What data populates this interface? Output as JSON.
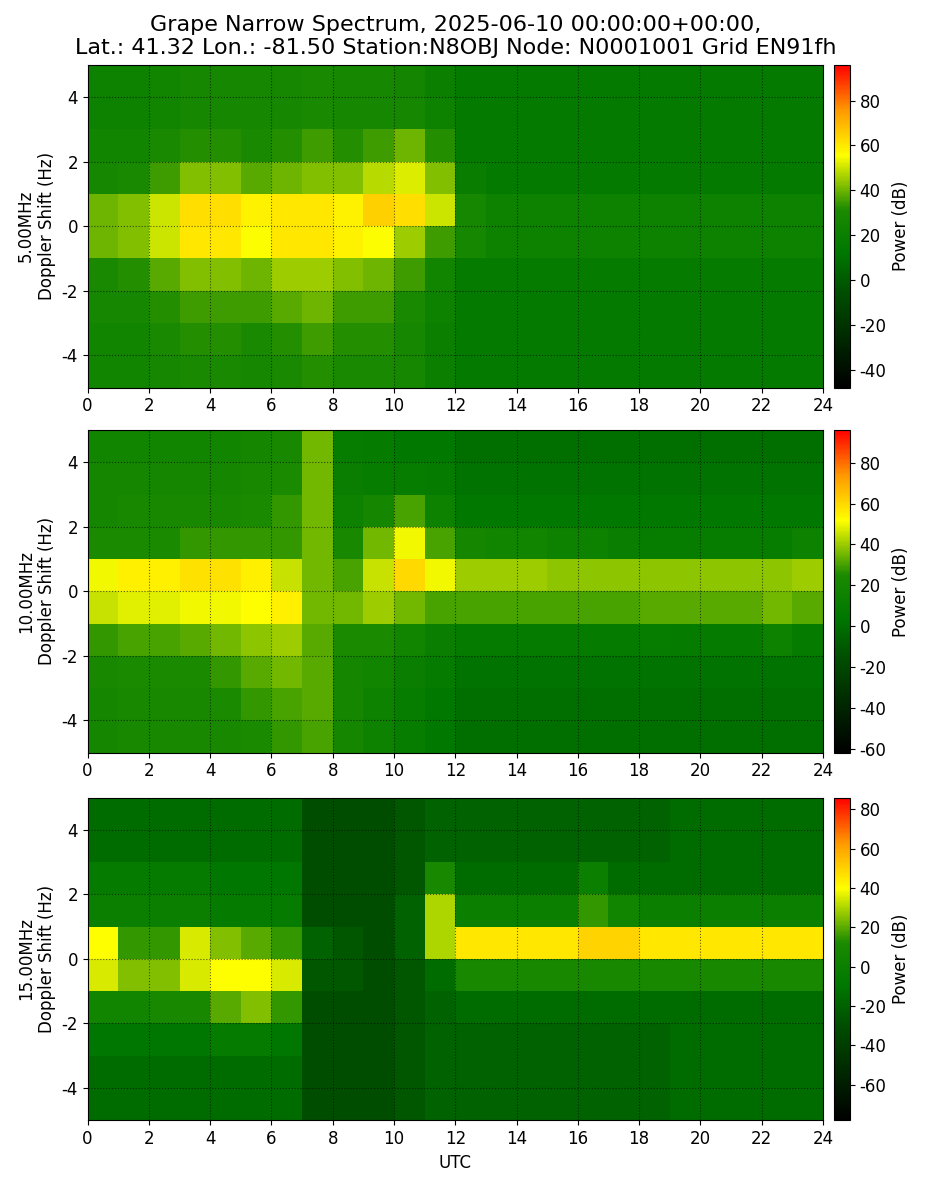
{
  "chart_data": [
    {
      "type": "heatmap",
      "title": "Grape Narrow Spectrum, 2025-06-10 00:00:00+00:00,\nLat.: 41.32 Lon.: -81.50 Station:N8OBJ Node: N0001001 Grid EN91fh",
      "ylabel": "5.00MHz\nDoppler Shift (Hz)",
      "xlim": [
        0,
        24
      ],
      "xticks": [
        0,
        2,
        4,
        6,
        8,
        10,
        12,
        14,
        16,
        18,
        20,
        22,
        24
      ],
      "ylim": [
        -5,
        5
      ],
      "yticks": [
        -4,
        -2,
        0,
        2,
        4
      ],
      "grid": true,
      "x_edges": [
        0,
        1,
        2,
        3,
        4,
        5,
        6,
        7,
        8,
        9,
        10,
        11,
        12,
        13,
        14,
        15,
        16,
        17,
        18,
        19,
        20,
        21,
        22,
        23,
        24
      ],
      "y_edges": [
        -5,
        -4,
        -3,
        -2,
        -1,
        0,
        1,
        2,
        3,
        4,
        5
      ],
      "cells": [
        [
          25,
          25,
          28,
          30,
          30,
          28,
          30,
          32,
          30,
          30,
          28,
          20,
          15,
          15,
          15,
          15,
          15,
          15,
          15,
          15,
          15,
          15,
          15,
          15
        ],
        [
          25,
          25,
          30,
          32,
          32,
          30,
          32,
          35,
          32,
          32,
          28,
          20,
          15,
          15,
          15,
          15,
          15,
          15,
          15,
          15,
          15,
          15,
          15,
          15
        ],
        [
          28,
          28,
          32,
          35,
          35,
          35,
          38,
          40,
          35,
          35,
          30,
          22,
          15,
          15,
          15,
          15,
          15,
          15,
          15,
          15,
          15,
          15,
          15,
          15
        ],
        [
          30,
          32,
          38,
          42,
          42,
          40,
          45,
          45,
          42,
          40,
          35,
          25,
          16,
          16,
          16,
          16,
          16,
          16,
          16,
          16,
          16,
          16,
          16,
          16
        ],
        [
          40,
          42,
          50,
          60,
          60,
          55,
          60,
          60,
          58,
          55,
          45,
          35,
          28,
          22,
          22,
          22,
          22,
          22,
          22,
          22,
          22,
          22,
          22,
          22
        ],
        [
          40,
          42,
          50,
          62,
          62,
          58,
          60,
          60,
          58,
          65,
          62,
          50,
          28,
          22,
          22,
          22,
          22,
          22,
          22,
          22,
          22,
          22,
          22,
          22
        ],
        [
          28,
          30,
          35,
          42,
          42,
          38,
          40,
          42,
          42,
          48,
          52,
          42,
          18,
          15,
          15,
          15,
          15,
          15,
          15,
          15,
          15,
          15,
          15,
          15
        ],
        [
          25,
          25,
          30,
          32,
          32,
          30,
          32,
          35,
          32,
          35,
          40,
          32,
          15,
          15,
          15,
          15,
          15,
          15,
          15,
          15,
          15,
          15,
          15,
          15
        ],
        [
          22,
          22,
          25,
          28,
          28,
          28,
          28,
          30,
          28,
          28,
          28,
          22,
          15,
          15,
          15,
          15,
          15,
          15,
          15,
          15,
          15,
          15,
          15,
          15
        ],
        [
          22,
          22,
          25,
          28,
          28,
          28,
          28,
          30,
          28,
          28,
          26,
          20,
          15,
          15,
          15,
          15,
          15,
          15,
          15,
          15,
          15,
          15,
          15,
          15
        ]
      ],
      "colorbar": {
        "label": "Power (dB)",
        "range": [
          -48,
          96
        ],
        "ticks": [
          -40,
          -20,
          0,
          20,
          40,
          60,
          80
        ]
      }
    },
    {
      "type": "heatmap",
      "ylabel": "10.00MHz\nDoppler Shift (Hz)",
      "xlim": [
        0,
        24
      ],
      "xticks": [
        0,
        2,
        4,
        6,
        8,
        10,
        12,
        14,
        16,
        18,
        20,
        22,
        24
      ],
      "ylim": [
        -5,
        5
      ],
      "yticks": [
        -4,
        -2,
        0,
        2,
        4
      ],
      "grid": true,
      "x_edges": [
        0,
        1,
        2,
        3,
        4,
        5,
        6,
        7,
        8,
        9,
        10,
        11,
        12,
        13,
        14,
        15,
        16,
        17,
        18,
        19,
        20,
        21,
        22,
        23,
        24
      ],
      "y_edges": [
        -5,
        -4,
        -3,
        -2,
        -1,
        0,
        1,
        2,
        3,
        4,
        5
      ],
      "cells": [
        [
          20,
          22,
          22,
          22,
          22,
          25,
          28,
          30,
          20,
          15,
          10,
          5,
          0,
          0,
          0,
          0,
          0,
          0,
          0,
          0,
          0,
          0,
          0,
          0
        ],
        [
          20,
          22,
          22,
          22,
          25,
          28,
          30,
          32,
          20,
          15,
          10,
          5,
          0,
          0,
          0,
          0,
          0,
          0,
          0,
          0,
          0,
          0,
          0,
          0
        ],
        [
          22,
          25,
          25,
          25,
          28,
          32,
          35,
          32,
          20,
          18,
          12,
          8,
          2,
          2,
          2,
          2,
          2,
          2,
          2,
          2,
          2,
          2,
          2,
          2
        ],
        [
          28,
          30,
          30,
          32,
          35,
          38,
          40,
          32,
          25,
          25,
          18,
          12,
          8,
          8,
          8,
          8,
          8,
          8,
          10,
          8,
          8,
          8,
          15,
          8
        ],
        [
          45,
          48,
          48,
          50,
          50,
          52,
          55,
          35,
          35,
          40,
          35,
          30,
          30,
          30,
          30,
          30,
          30,
          30,
          32,
          32,
          32,
          32,
          35,
          32
        ],
        [
          50,
          55,
          55,
          58,
          58,
          55,
          45,
          35,
          30,
          45,
          60,
          50,
          40,
          40,
          40,
          38,
          38,
          38,
          38,
          38,
          38,
          38,
          38,
          40
        ],
        [
          25,
          25,
          25,
          28,
          28,
          28,
          28,
          35,
          22,
          35,
          50,
          30,
          20,
          18,
          18,
          15,
          15,
          12,
          10,
          10,
          10,
          10,
          10,
          15
        ],
        [
          20,
          22,
          22,
          22,
          22,
          25,
          28,
          35,
          15,
          20,
          30,
          15,
          5,
          5,
          5,
          5,
          5,
          5,
          5,
          5,
          5,
          5,
          5,
          5
        ],
        [
          20,
          20,
          20,
          20,
          20,
          22,
          25,
          35,
          12,
          10,
          10,
          8,
          2,
          2,
          2,
          2,
          2,
          2,
          2,
          2,
          2,
          2,
          2,
          2
        ],
        [
          18,
          18,
          18,
          18,
          18,
          20,
          22,
          35,
          10,
          8,
          5,
          5,
          0,
          0,
          0,
          0,
          0,
          0,
          0,
          0,
          0,
          0,
          0,
          0
        ]
      ],
      "colorbar": {
        "label": "Power (dB)",
        "range": [
          -62,
          96
        ],
        "ticks": [
          -60,
          -40,
          -20,
          0,
          20,
          40,
          60,
          80
        ]
      }
    },
    {
      "type": "heatmap",
      "ylabel": "15.00MHz\nDoppler Shift (Hz)",
      "xlabel": "UTC",
      "xlim": [
        0,
        24
      ],
      "xticks": [
        0,
        2,
        4,
        6,
        8,
        10,
        12,
        14,
        16,
        18,
        20,
        22,
        24
      ],
      "ylim": [
        -5,
        5
      ],
      "yticks": [
        -4,
        -2,
        0,
        2,
        4
      ],
      "grid": true,
      "x_edges": [
        0,
        1,
        2,
        3,
        4,
        5,
        6,
        7,
        8,
        9,
        10,
        11,
        12,
        13,
        14,
        15,
        16,
        17,
        18,
        19,
        20,
        21,
        22,
        23,
        24
      ],
      "y_edges": [
        -5,
        -4,
        -3,
        -2,
        -1,
        0,
        1,
        2,
        3,
        4,
        5
      ],
      "cells": [
        [
          -15,
          -15,
          -15,
          -15,
          -15,
          -15,
          -15,
          -30,
          -30,
          -30,
          -25,
          -20,
          -20,
          -20,
          -20,
          -20,
          -20,
          -20,
          -20,
          -15,
          -15,
          -15,
          -15,
          -15
        ],
        [
          -15,
          -15,
          -15,
          -15,
          -15,
          -15,
          -15,
          -30,
          -30,
          -30,
          -25,
          -20,
          -20,
          -20,
          -20,
          -20,
          -20,
          -20,
          -20,
          -15,
          -15,
          -15,
          -15,
          -15
        ],
        [
          -10,
          -10,
          -10,
          -10,
          -5,
          -5,
          -10,
          -30,
          -30,
          -30,
          -25,
          -20,
          -20,
          -20,
          -20,
          -20,
          -20,
          -20,
          -20,
          -15,
          -15,
          -15,
          -15,
          -15
        ],
        [
          5,
          5,
          10,
          10,
          20,
          25,
          15,
          -30,
          -30,
          -30,
          -25,
          -20,
          -15,
          -15,
          -15,
          -15,
          -15,
          -15,
          -15,
          -15,
          -15,
          -15,
          -15,
          -15
        ],
        [
          35,
          25,
          25,
          35,
          40,
          40,
          35,
          -25,
          -25,
          -30,
          -25,
          -15,
          10,
          10,
          10,
          10,
          10,
          10,
          10,
          10,
          10,
          10,
          10,
          10
        ],
        [
          40,
          15,
          15,
          35,
          25,
          20,
          15,
          -20,
          -25,
          -30,
          -20,
          30,
          45,
          45,
          45,
          45,
          50,
          50,
          45,
          45,
          45,
          45,
          45,
          45
        ],
        [
          0,
          0,
          0,
          0,
          -5,
          -5,
          -5,
          -30,
          -30,
          -30,
          -20,
          30,
          0,
          0,
          0,
          0,
          15,
          5,
          0,
          0,
          0,
          0,
          0,
          0
        ],
        [
          -5,
          -5,
          -5,
          -5,
          -10,
          -10,
          -10,
          -30,
          -30,
          -30,
          -25,
          10,
          -15,
          -15,
          -15,
          -15,
          0,
          -15,
          -15,
          -15,
          -15,
          -15,
          -15,
          -15
        ],
        [
          -15,
          -15,
          -15,
          -15,
          -15,
          -15,
          -15,
          -30,
          -30,
          -30,
          -25,
          -20,
          -20,
          -20,
          -20,
          -20,
          -20,
          -20,
          -20,
          -15,
          -15,
          -15,
          -15,
          -15
        ],
        [
          -15,
          -15,
          -15,
          -15,
          -15,
          -15,
          -15,
          -30,
          -30,
          -30,
          -25,
          -20,
          -20,
          -20,
          -20,
          -20,
          -20,
          -20,
          -20,
          -15,
          -15,
          -15,
          -15,
          -15
        ]
      ],
      "colorbar": {
        "label": "Power (dB)",
        "range": [
          -78,
          86
        ],
        "ticks": [
          -60,
          -40,
          -20,
          0,
          20,
          40,
          60,
          80
        ]
      }
    }
  ]
}
